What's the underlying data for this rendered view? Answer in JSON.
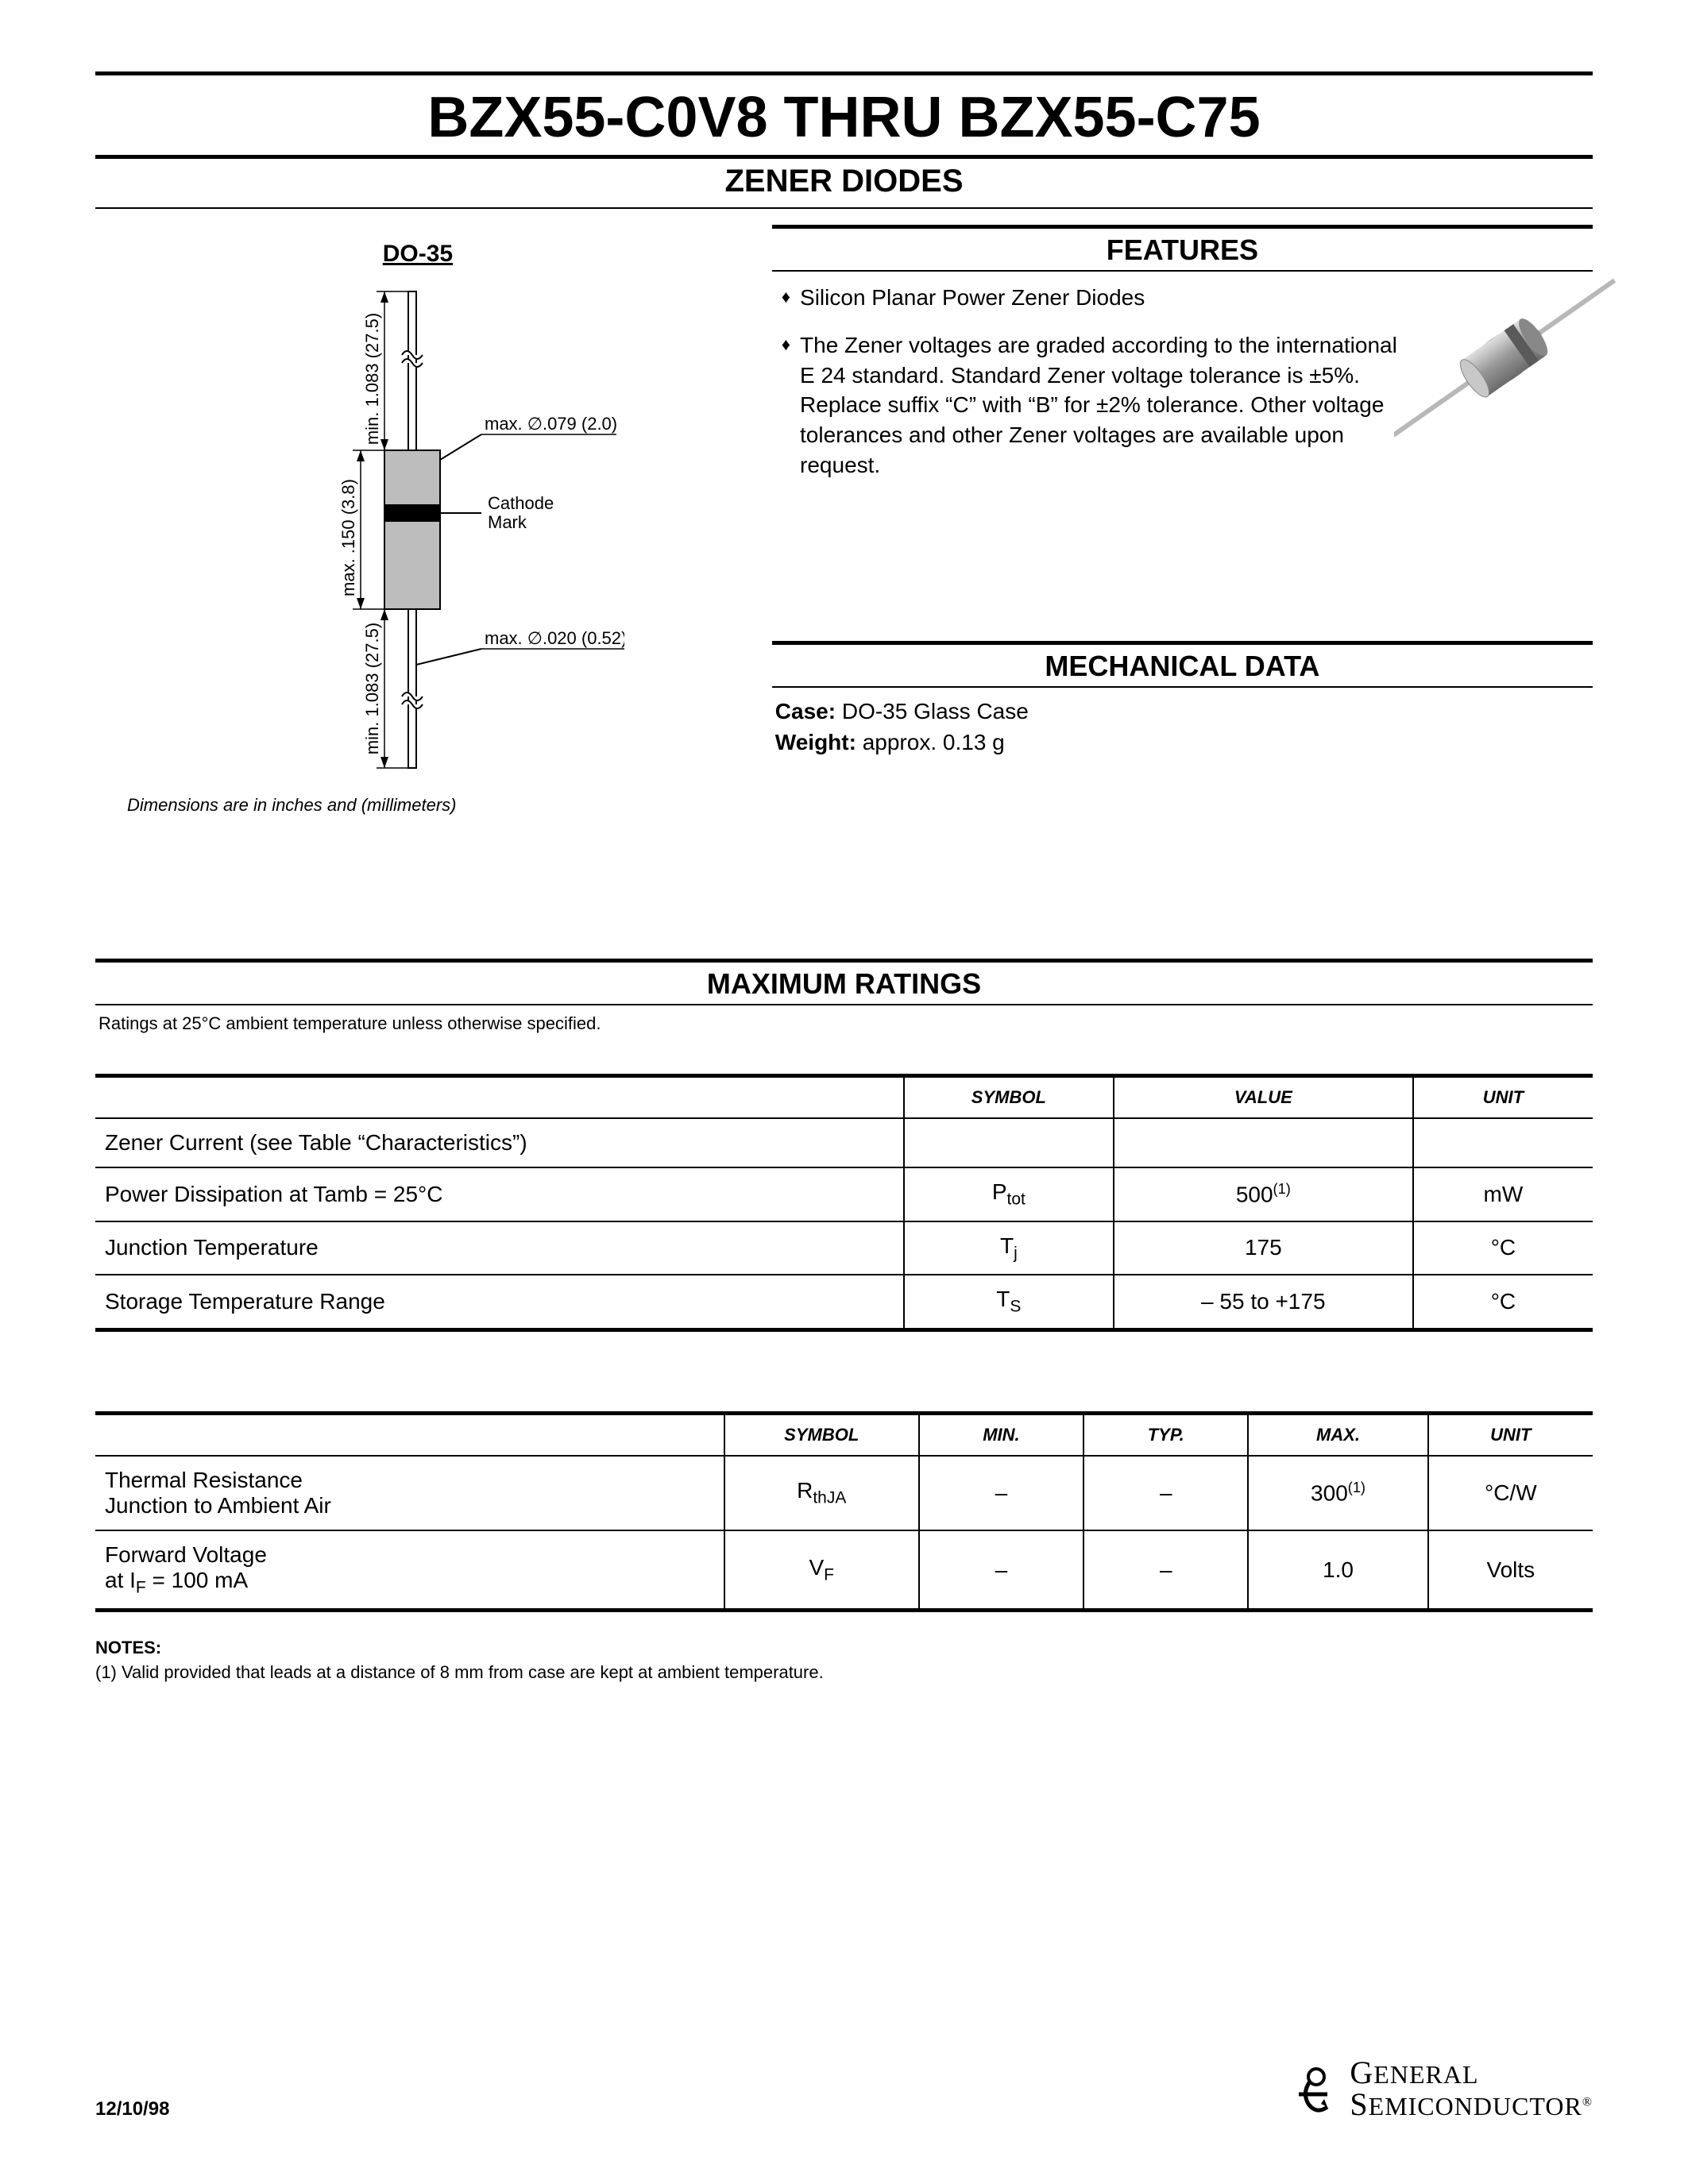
{
  "header": {
    "title": "BZX55-C0V8 THRU BZX55-C75",
    "subtitle": "ZENER DIODES"
  },
  "do35": {
    "title": "DO-35",
    "labels": {
      "cathode": "Cathode\nMark",
      "dia1": "max. ∅.079 (2.0)",
      "dia2": "max. ∅.020 (0.52)",
      "len_body": "max. .150 (3.8)",
      "lead_top": "min. 1.083 (27.5)",
      "lead_bot": "min. 1.083 (27.5)"
    },
    "dim_note": "Dimensions are in inches and (millimeters)",
    "stroke_color": "#000000",
    "fill_gray": "#bdbdbd"
  },
  "features": {
    "heading": "FEATURES",
    "items": [
      "Silicon Planar Power Zener Diodes",
      "The Zener voltages are graded according to the international E 24 standard. Standard Zener voltage tolerance is ±5%. Replace suffix “C” with “B” for ±2% tolerance. Other voltage tolerances and other Zener voltages are available upon request."
    ]
  },
  "mechanical": {
    "heading": "MECHANICAL DATA",
    "case_label": "Case:",
    "case_value": "DO-35 Glass Case",
    "weight_label": "Weight:",
    "weight_value": "approx. 0.13 g"
  },
  "max_ratings": {
    "heading": "MAXIMUM RATINGS",
    "note": "Ratings at 25°C ambient temperature unless otherwise specified.",
    "columns": [
      "",
      "SYMBOL",
      "VALUE",
      "UNIT"
    ],
    "rows": [
      {
        "param": "Zener Current (see Table “Characteristics”)",
        "symbol": "",
        "value": "",
        "unit": ""
      },
      {
        "param": "Power Dissipation at Tamb = 25°C",
        "symbol_html": "P<span class='sub'>tot</span>",
        "value_html": "500<span class='sup'>(1)</span>",
        "unit": "mW"
      },
      {
        "param": "Junction Temperature",
        "symbol_html": "T<span class='sub'>j</span>",
        "value": "175",
        "unit": "°C"
      },
      {
        "param": "Storage Temperature Range",
        "symbol_html": "T<span class='sub'>S</span>",
        "value": "– 55 to +175",
        "unit": "°C"
      }
    ],
    "col_widths": [
      "54%",
      "14%",
      "20%",
      "12%"
    ]
  },
  "table2": {
    "columns": [
      "",
      "SYMBOL",
      "MIN.",
      "TYP.",
      "MAX.",
      "UNIT"
    ],
    "rows": [
      {
        "param_html": "Thermal Resistance<br>Junction to Ambient Air",
        "symbol_html": "R<span class='sub'>thJA</span>",
        "min": "–",
        "typ": "–",
        "max_html": "300<span class='sup'>(1)</span>",
        "unit": "°C/W"
      },
      {
        "param_html": "Forward Voltage<br>at I<span class='sub'>F</span> = 100 mA",
        "symbol_html": "V<span class='sub'>F</span>",
        "min": "–",
        "typ": "–",
        "max": "1.0",
        "unit": "Volts"
      }
    ],
    "col_widths": [
      "42%",
      "13%",
      "11%",
      "11%",
      "12%",
      "11%"
    ]
  },
  "notes": {
    "heading": "NOTES:",
    "items": [
      "(1) Valid provided that leads at a distance of 8 mm from case are kept at ambient temperature."
    ]
  },
  "footer": {
    "date": "12/10/98",
    "logo_line1": "General",
    "logo_line2": "Semiconductor"
  },
  "colors": {
    "text": "#000000",
    "bg": "#ffffff",
    "diode_body": "#9a9a9a",
    "diode_body_light": "#d0d0d0",
    "diode_lead": "#b8b8b8"
  }
}
